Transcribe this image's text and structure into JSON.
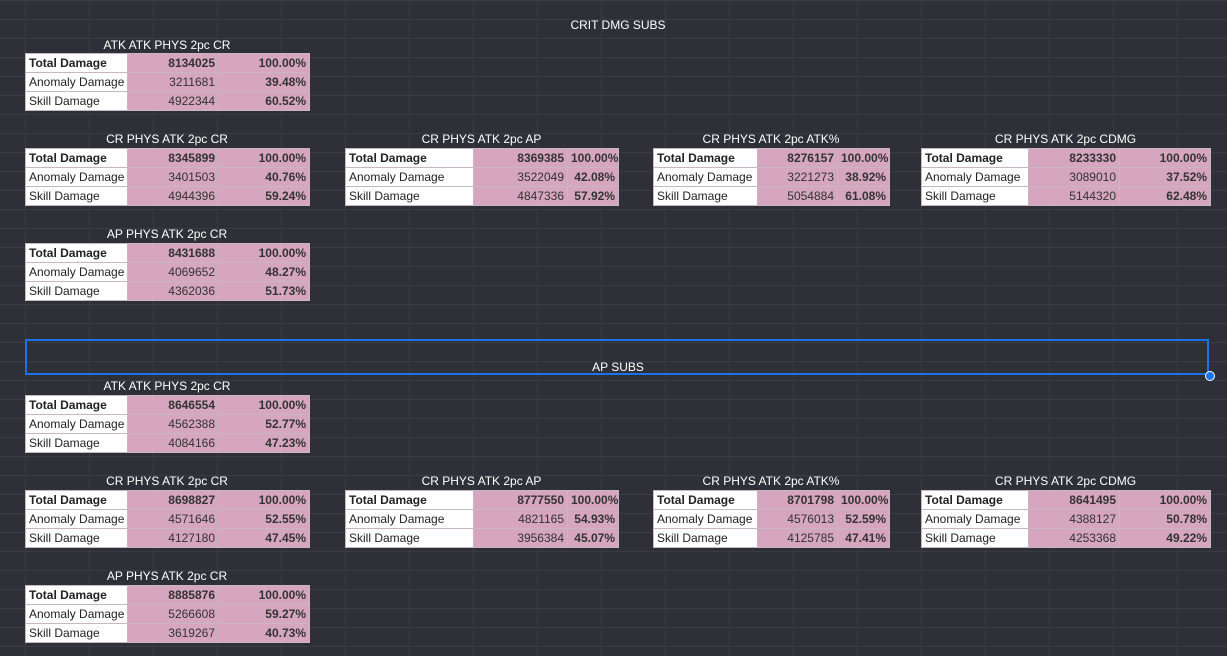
{
  "sections": [
    {
      "title": "CRIT DMG SUBS",
      "tables": [
        {
          "title": "ATK ATK PHYS 2pc CR",
          "rows": [
            {
              "label": "Total Damage",
              "value": "8134025",
              "pct": "100.00%"
            },
            {
              "label": "Anomaly Damage",
              "value": "3211681",
              "pct": "39.48%"
            },
            {
              "label": "Skill Damage",
              "value": "4922344",
              "pct": "60.52%"
            }
          ]
        },
        {
          "title": "CR PHYS ATK 2pc CR",
          "rows": [
            {
              "label": "Total Damage",
              "value": "8345899",
              "pct": "100.00%"
            },
            {
              "label": "Anomaly Damage",
              "value": "3401503",
              "pct": "40.76%"
            },
            {
              "label": "Skill Damage",
              "value": "4944396",
              "pct": "59.24%"
            }
          ]
        },
        {
          "title": "CR PHYS ATK 2pc AP",
          "rows": [
            {
              "label": "Total Damage",
              "value": "8369385",
              "pct": "100.00%"
            },
            {
              "label": "Anomaly Damage",
              "value": "3522049",
              "pct": "42.08%"
            },
            {
              "label": "Skill Damage",
              "value": "4847336",
              "pct": "57.92%"
            }
          ]
        },
        {
          "title": "CR PHYS ATK 2pc ATK%",
          "rows": [
            {
              "label": "Total Damage",
              "value": "8276157",
              "pct": "100.00%"
            },
            {
              "label": "Anomaly Damage",
              "value": "3221273",
              "pct": "38.92%"
            },
            {
              "label": "Skill Damage",
              "value": "5054884",
              "pct": "61.08%"
            }
          ]
        },
        {
          "title": "CR PHYS ATK 2pc CDMG",
          "rows": [
            {
              "label": "Total Damage",
              "value": "8233330",
              "pct": "100.00%"
            },
            {
              "label": "Anomaly Damage",
              "value": "3089010",
              "pct": "37.52%"
            },
            {
              "label": "Skill Damage",
              "value": "5144320",
              "pct": "62.48%"
            }
          ]
        },
        {
          "title": "AP PHYS ATK 2pc CR",
          "rows": [
            {
              "label": "Total Damage",
              "value": "8431688",
              "pct": "100.00%"
            },
            {
              "label": "Anomaly Damage",
              "value": "4069652",
              "pct": "48.27%"
            },
            {
              "label": "Skill Damage",
              "value": "4362036",
              "pct": "51.73%"
            }
          ]
        }
      ]
    },
    {
      "title": "AP SUBS",
      "tables": [
        {
          "title": "ATK ATK PHYS 2pc CR",
          "rows": [
            {
              "label": "Total Damage",
              "value": "8646554",
              "pct": "100.00%"
            },
            {
              "label": "Anomaly Damage",
              "value": "4562388",
              "pct": "52.77%"
            },
            {
              "label": "Skill Damage",
              "value": "4084166",
              "pct": "47.23%"
            }
          ]
        },
        {
          "title": "CR PHYS ATK 2pc CR",
          "rows": [
            {
              "label": "Total Damage",
              "value": "8698827",
              "pct": "100.00%"
            },
            {
              "label": "Anomaly Damage",
              "value": "4571646",
              "pct": "52.55%"
            },
            {
              "label": "Skill Damage",
              "value": "4127180",
              "pct": "47.45%"
            }
          ]
        },
        {
          "title": "CR PHYS ATK 2pc AP",
          "rows": [
            {
              "label": "Total Damage",
              "value": "8777550",
              "pct": "100.00%"
            },
            {
              "label": "Anomaly Damage",
              "value": "4821165",
              "pct": "54.93%"
            },
            {
              "label": "Skill Damage",
              "value": "3956384",
              "pct": "45.07%"
            }
          ]
        },
        {
          "title": "CR PHYS ATK 2pc ATK%",
          "rows": [
            {
              "label": "Total Damage",
              "value": "8701798",
              "pct": "100.00%"
            },
            {
              "label": "Anomaly Damage",
              "value": "4576013",
              "pct": "52.59%"
            },
            {
              "label": "Skill Damage",
              "value": "4125785",
              "pct": "47.41%"
            }
          ]
        },
        {
          "title": "CR PHYS ATK 2pc CDMG",
          "rows": [
            {
              "label": "Total Damage",
              "value": "8641495",
              "pct": "100.00%"
            },
            {
              "label": "Anomaly Damage",
              "value": "4388127",
              "pct": "50.78%"
            },
            {
              "label": "Skill Damage",
              "value": "4253368",
              "pct": "49.22%"
            }
          ]
        },
        {
          "title": "AP PHYS ATK 2pc CR",
          "rows": [
            {
              "label": "Total Damage",
              "value": "8885876",
              "pct": "100.00%"
            },
            {
              "label": "Anomaly Damage",
              "value": "5266608",
              "pct": "59.27%"
            },
            {
              "label": "Skill Damage",
              "value": "3619267",
              "pct": "40.73%"
            }
          ]
        }
      ]
    }
  ],
  "colors": {
    "value_cell": "#d5a6bd",
    "selection": "#1a73e8",
    "background": "#2f3037"
  }
}
